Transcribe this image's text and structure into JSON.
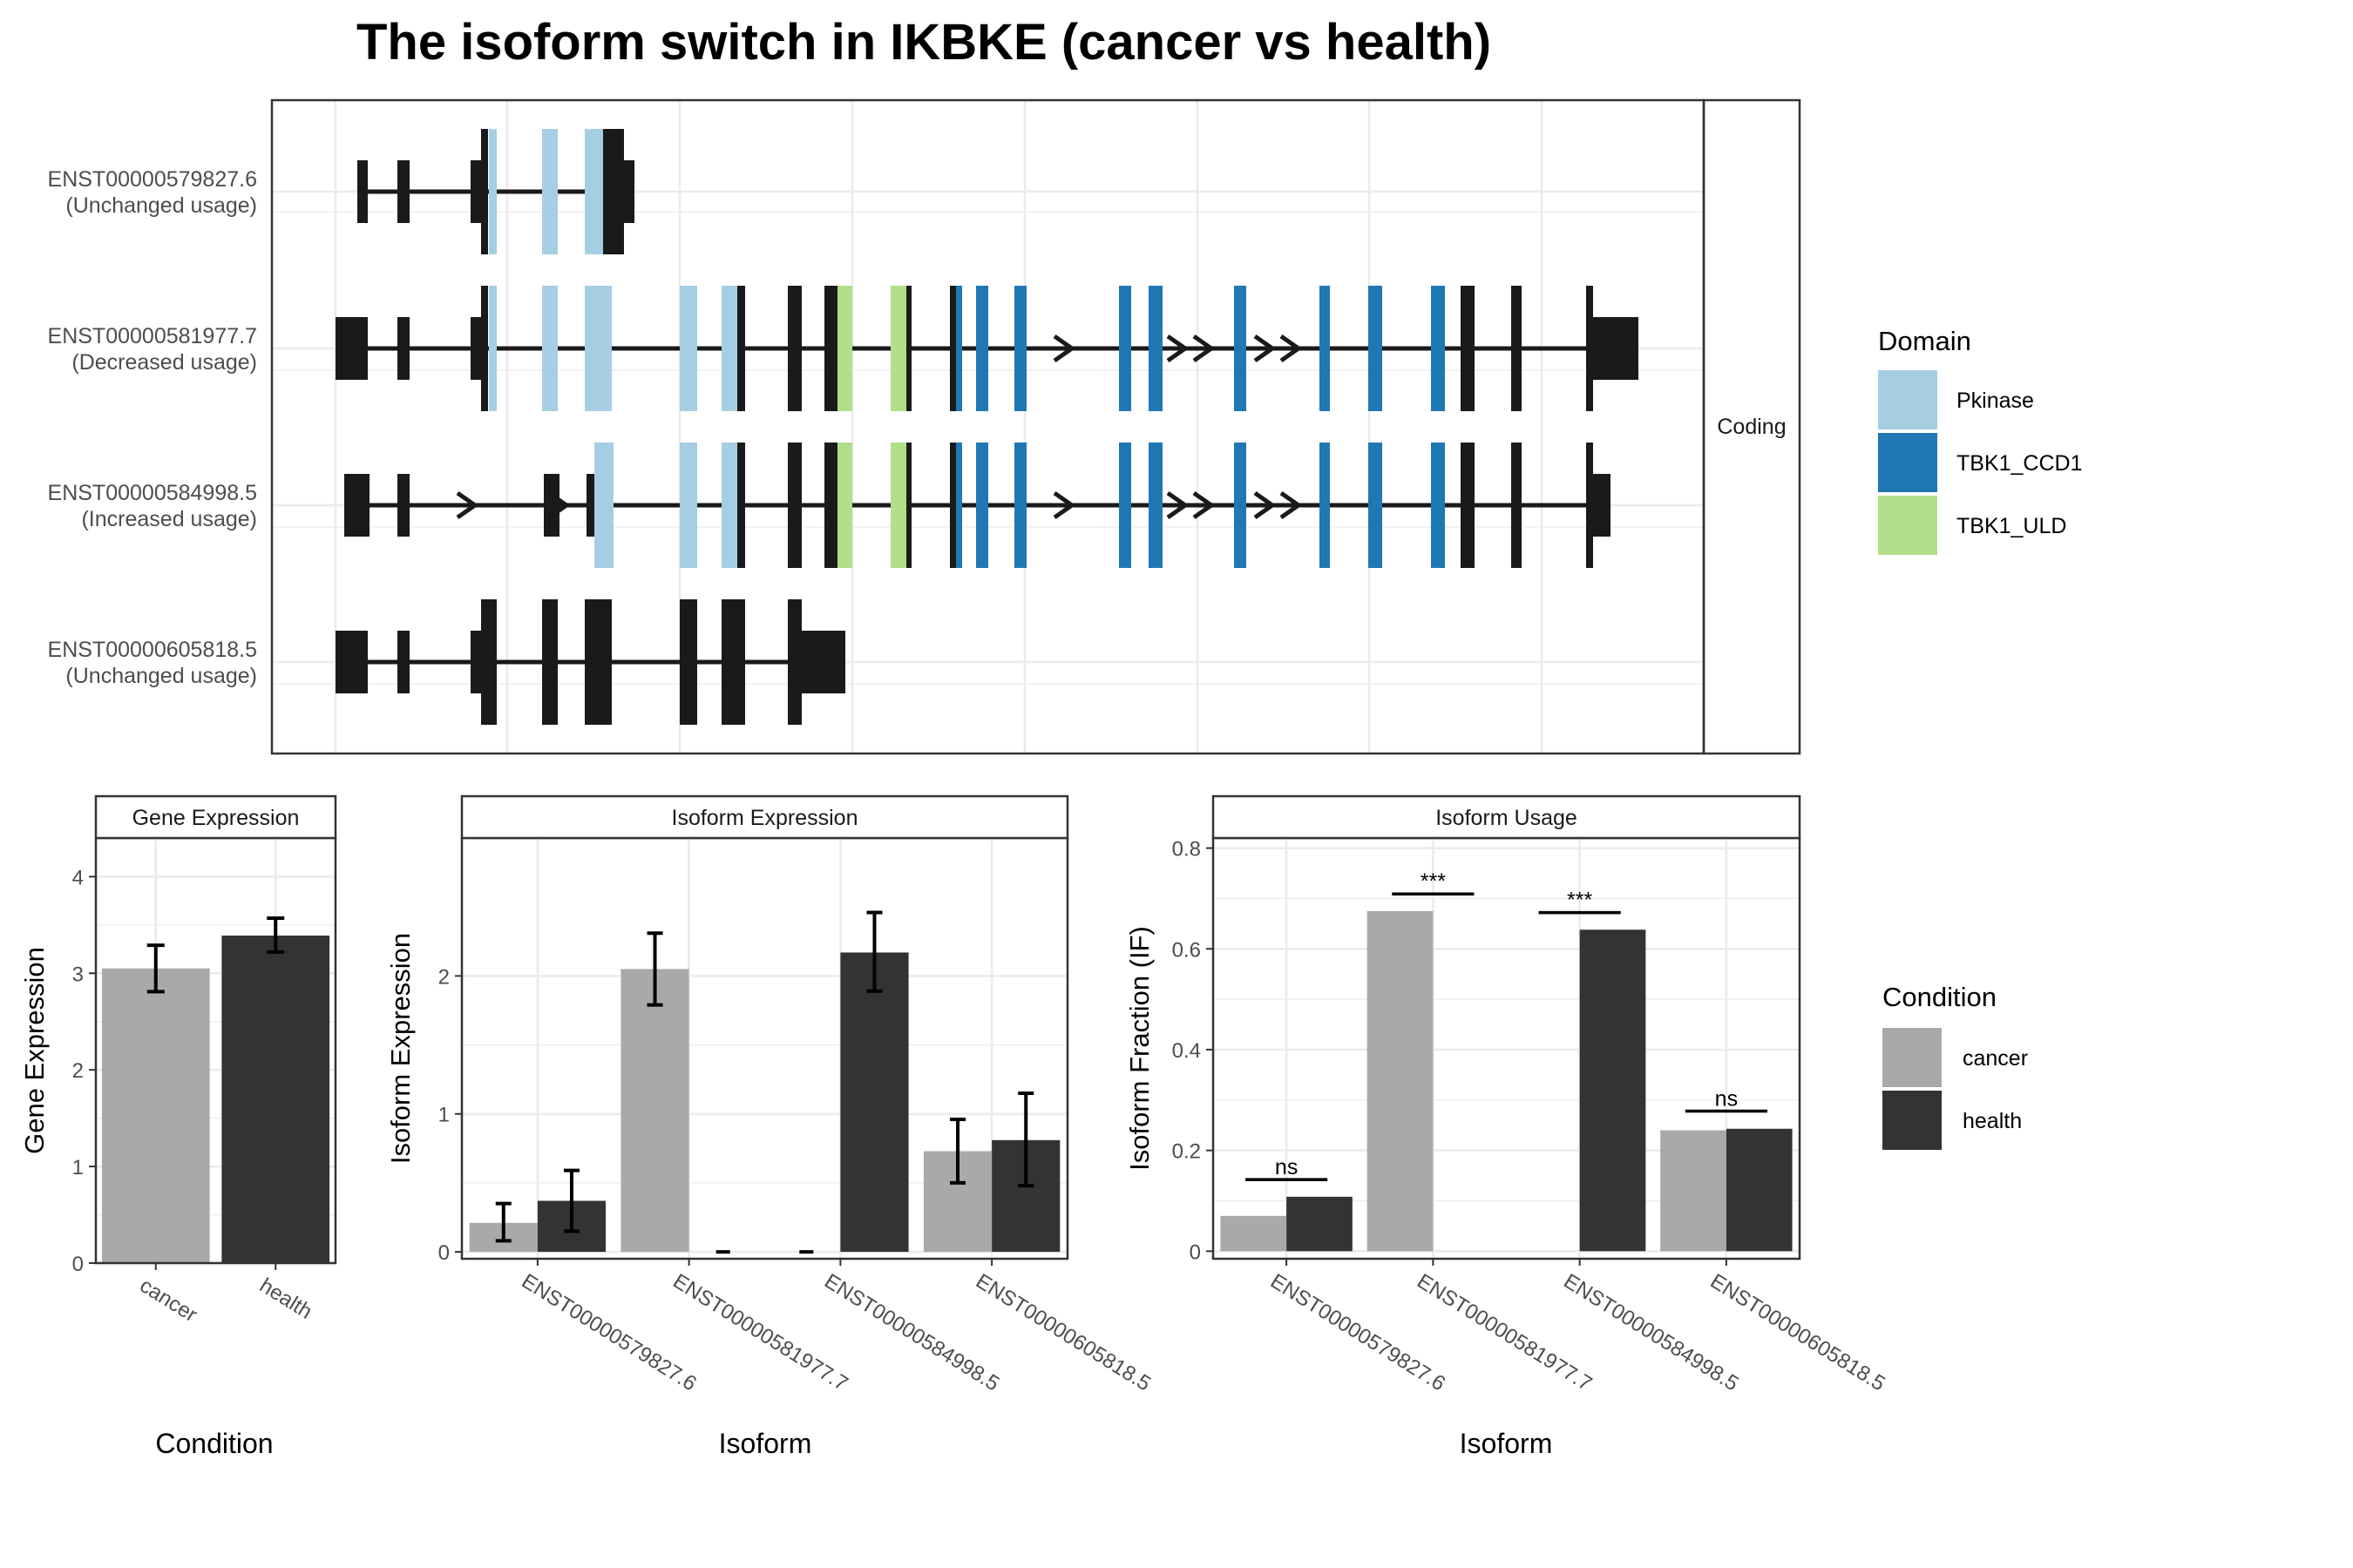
{
  "figure_title": "The isoform switch in IKBKE (cancer vs health)",
  "structure": {
    "facet_label": "Coding",
    "isoforms": [
      {
        "id": "ENST00000579827.6",
        "status": "(Unchanged usage)"
      },
      {
        "id": "ENST00000581977.7",
        "status": "(Decreased usage)"
      },
      {
        "id": "ENST00000584998.5",
        "status": "(Increased usage)"
      },
      {
        "id": "ENST00000605818.5",
        "status": "(Unchanged usage)"
      }
    ],
    "domain_legend": {
      "title": "Domain",
      "items": [
        {
          "label": "Pkinase",
          "color": "#a6cee3"
        },
        {
          "label": "TBK1_CCD1",
          "color": "#1f78b4"
        },
        {
          "label": "TBK1_ULD",
          "color": "#b2df8a"
        }
      ]
    }
  },
  "condition_legend": {
    "title": "Condition",
    "items": [
      {
        "label": "cancer",
        "color": "#a9a9a9"
      },
      {
        "label": "health",
        "color": "#333333"
      }
    ]
  },
  "chart_data": [
    {
      "type": "bar",
      "title": "Gene Expression",
      "xlabel": "Condition",
      "ylabel": "Gene Expression",
      "ylim": [
        0,
        4.4
      ],
      "yticks": [
        0,
        1,
        2,
        3,
        4
      ],
      "categories": [
        "cancer",
        "health"
      ],
      "values": [
        3.05,
        3.39
      ],
      "errors": [
        [
          2.81,
          3.29
        ],
        [
          3.22,
          3.57
        ]
      ],
      "grid": true
    },
    {
      "type": "bar",
      "title": "Isoform Expression",
      "xlabel": "Isoform",
      "ylabel": "Isoform Expression",
      "ylim": [
        -0.05,
        3.0
      ],
      "yticks": [
        0,
        1,
        2
      ],
      "categories": [
        "ENST00000579827.6",
        "ENST00000581977.7",
        "ENST00000584998.5",
        "ENST00000605818.5"
      ],
      "series": [
        {
          "name": "cancer",
          "values": [
            0.21,
            2.05,
            0.0,
            0.73
          ],
          "errors": [
            [
              0.08,
              0.35
            ],
            [
              1.79,
              2.31
            ],
            [
              0.0,
              0.0
            ],
            [
              0.5,
              0.96
            ]
          ]
        },
        {
          "name": "health",
          "values": [
            0.37,
            0.0,
            2.17,
            0.81
          ],
          "errors": [
            [
              0.15,
              0.59
            ],
            [
              0.0,
              0.0
            ],
            [
              1.89,
              2.46
            ],
            [
              0.48,
              1.15
            ]
          ]
        }
      ],
      "grid": true
    },
    {
      "type": "bar",
      "title": "Isoform Usage",
      "xlabel": "Isoform",
      "ylabel": "Isoform Fraction (IF)",
      "ylim": [
        -0.015,
        0.82
      ],
      "yticks": [
        0.0,
        0.2,
        0.4,
        0.6,
        0.8
      ],
      "categories": [
        "ENST00000579827.6",
        "ENST00000581977.7",
        "ENST00000584998.5",
        "ENST00000605818.5"
      ],
      "series": [
        {
          "name": "cancer",
          "values": [
            0.07,
            0.675,
            0.0,
            0.24
          ]
        },
        {
          "name": "health",
          "values": [
            0.108,
            0.0,
            0.638,
            0.243
          ]
        }
      ],
      "significance": [
        {
          "label": "ns",
          "y": 0.142
        },
        {
          "label": "***",
          "y": 0.709
        },
        {
          "label": "***",
          "y": 0.672
        },
        {
          "label": "ns",
          "y": 0.278
        }
      ],
      "grid": true
    }
  ]
}
